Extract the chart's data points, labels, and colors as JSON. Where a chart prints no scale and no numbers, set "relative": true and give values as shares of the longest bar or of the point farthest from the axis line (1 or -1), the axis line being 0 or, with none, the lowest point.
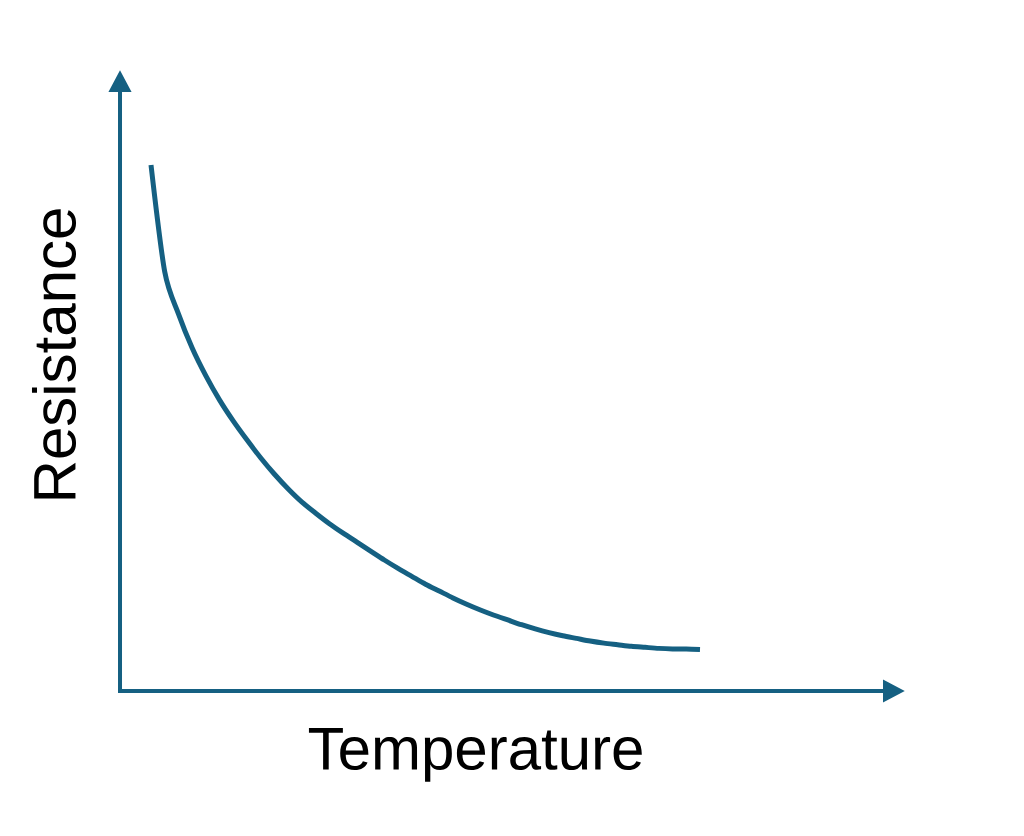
{
  "chart_data": {
    "type": "line",
    "xlabel": "Temperature",
    "ylabel": "Resistance",
    "relative": true,
    "marker": "none",
    "line_style": "solid",
    "categories": [
      null,
      null,
      null,
      null,
      null,
      null,
      null,
      null,
      null,
      null,
      null,
      null,
      null,
      null,
      null,
      null,
      null,
      null,
      null,
      null,
      null,
      null,
      null,
      null,
      null,
      null,
      null,
      null,
      null,
      null,
      null,
      null,
      null,
      null,
      null,
      null,
      null,
      null,
      null,
      null,
      null
    ],
    "series": [
      {
        "color": "#156082",
        "values": [
          1,
          0.797,
          0.717,
          0.652,
          0.599,
          0.553,
          0.513,
          0.477,
          0.443,
          0.412,
          0.384,
          0.359,
          0.338,
          0.318,
          0.3,
          0.283,
          0.266,
          0.249,
          0.233,
          0.218,
          0.203,
          0.19,
          0.177,
          0.165,
          0.154,
          0.144,
          0.135,
          0.126,
          0.118,
          0.111,
          0.105,
          0.1,
          0.095,
          0.091,
          0.088,
          0.085,
          0.083,
          0.081,
          0.08,
          0.08,
          0.079
        ]
      }
    ]
  }
}
